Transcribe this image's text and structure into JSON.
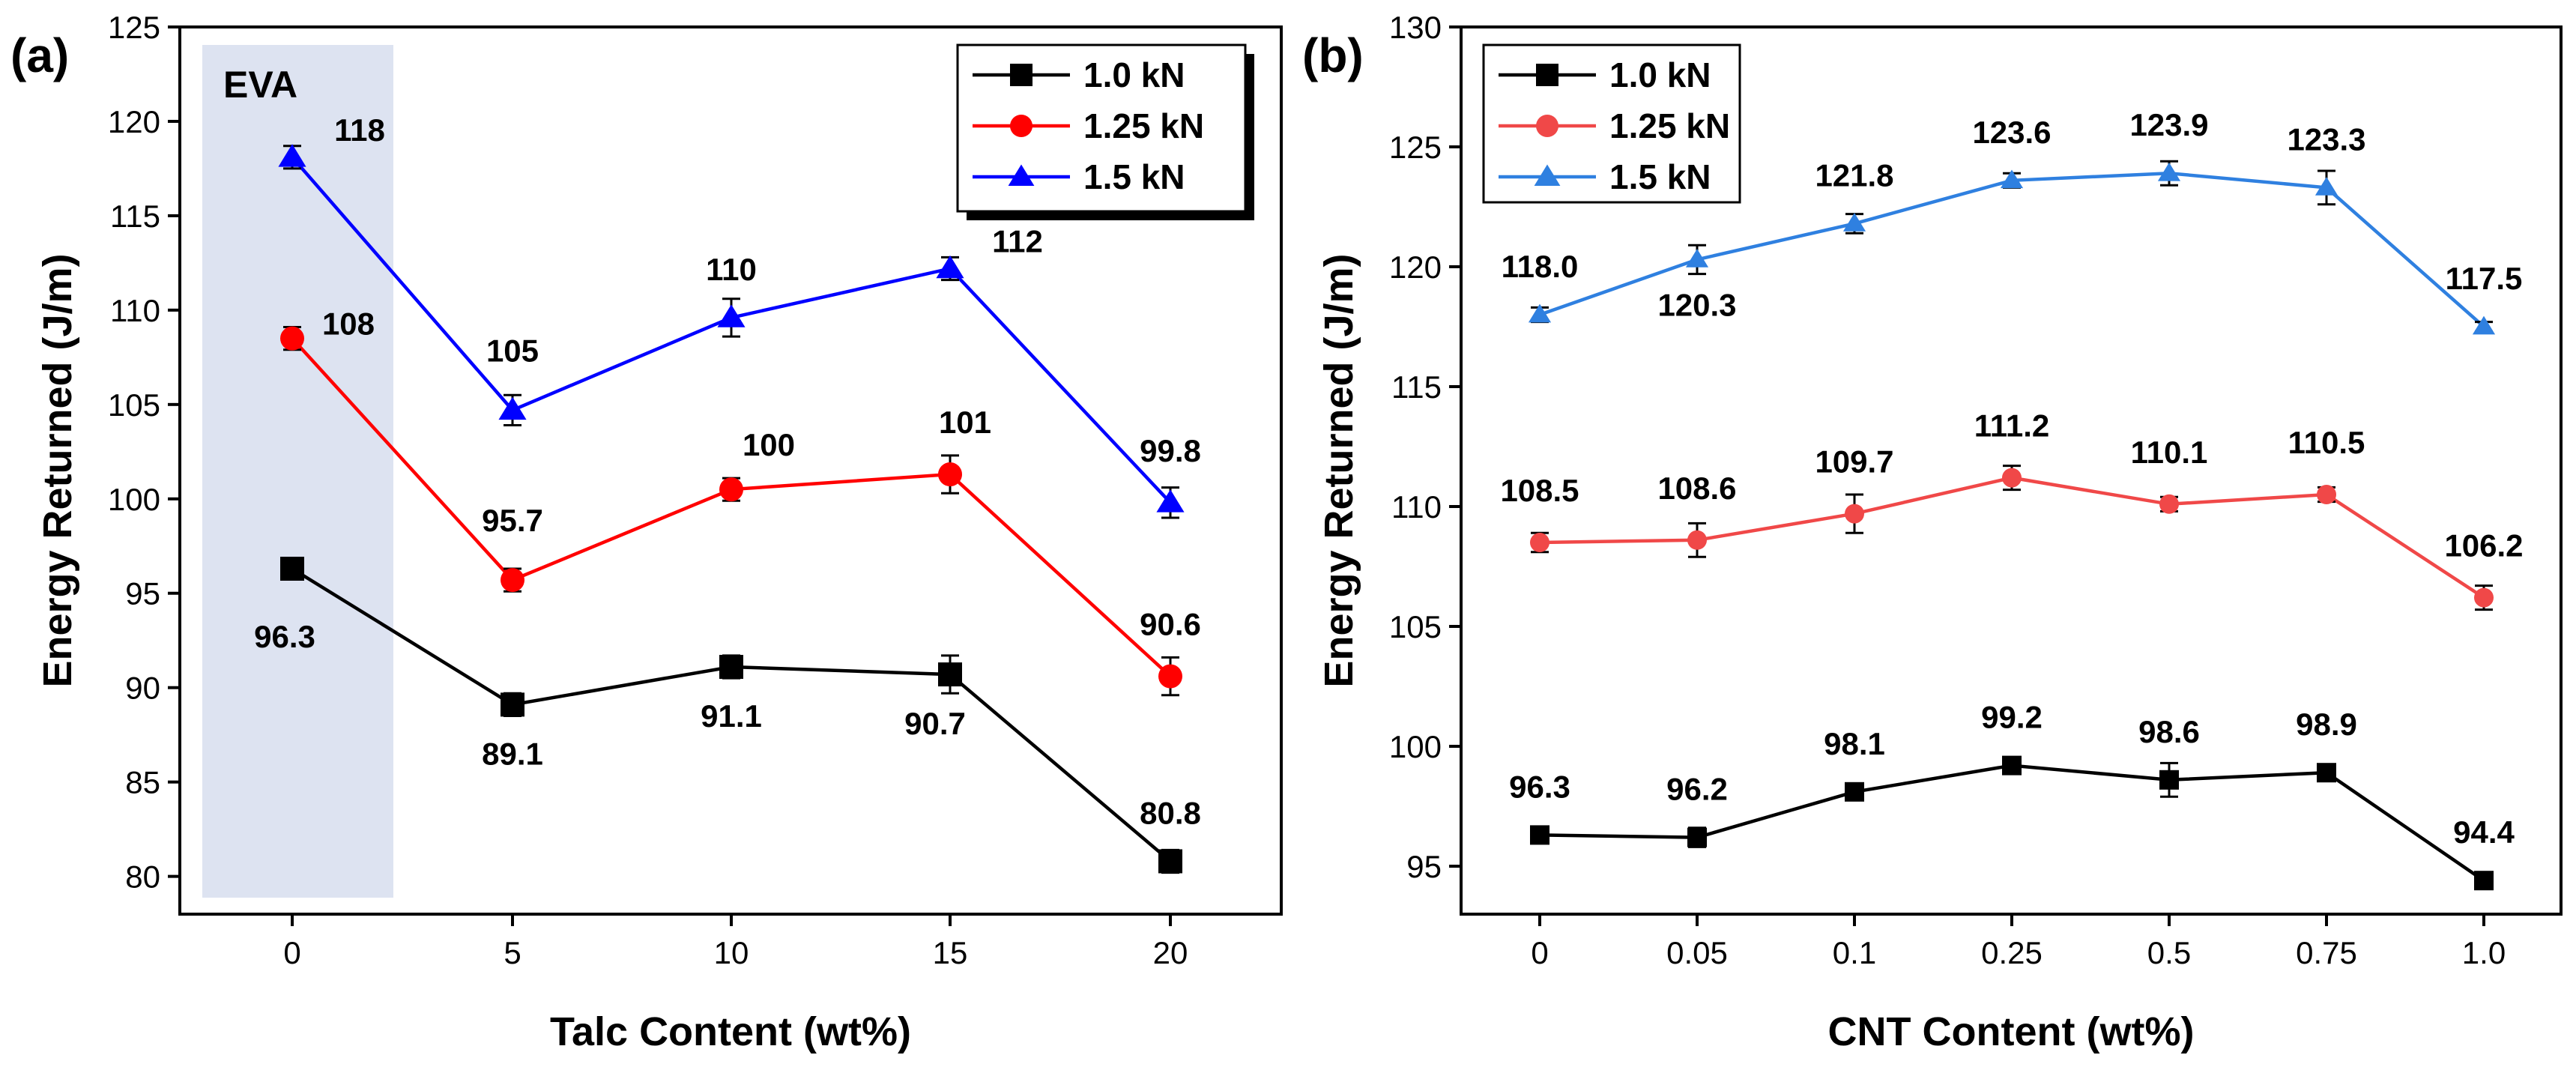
{
  "chart_data": [
    {
      "type": "line",
      "panel_label": "(a)",
      "xlabel": "Talc Content (wt%)",
      "ylabel": "Energy Returned (J/m)",
      "categories": [
        "0",
        "5",
        "10",
        "15",
        "20"
      ],
      "ylim": [
        78,
        125
      ],
      "yticks": [
        80,
        85,
        90,
        95,
        100,
        105,
        110,
        115,
        120,
        125
      ],
      "shaded_region": {
        "label": "EVA",
        "category": "0"
      },
      "legend_position": "top-right",
      "series": [
        {
          "name": "1.0 kN",
          "color": "#000000",
          "marker": "square",
          "values": [
            96.3,
            89.1,
            91.1,
            90.7,
            80.8
          ],
          "errors": [
            0.4,
            0.6,
            0.6,
            1.0,
            0.6
          ],
          "labels": [
            "96.3",
            "89.1",
            "91.1",
            "90.7",
            "80.8"
          ]
        },
        {
          "name": "1.25 kN",
          "color": "#ff0000",
          "marker": "circle",
          "values": [
            108.5,
            95.7,
            100.5,
            101.3,
            90.6
          ],
          "errors": [
            0.6,
            0.6,
            0.6,
            1.0,
            1.0
          ],
          "labels": [
            "108",
            "95.7",
            "100",
            "101",
            "90.6"
          ]
        },
        {
          "name": "1.5 kN",
          "color": "#0000ff",
          "marker": "triangle",
          "values": [
            118.1,
            104.7,
            109.6,
            112.2,
            99.8
          ],
          "errors": [
            0.6,
            0.8,
            1.0,
            0.6,
            0.8
          ],
          "labels": [
            "118",
            "105",
            "110",
            "112",
            "99.8"
          ]
        }
      ]
    },
    {
      "type": "line",
      "panel_label": "(b)",
      "xlabel": "CNT Content (wt%)",
      "ylabel": "Energy Returned (J/m)",
      "categories": [
        "0",
        "0.05",
        "0.1",
        "0.25",
        "0.5",
        "0.75",
        "1.0"
      ],
      "ylim": [
        93,
        130
      ],
      "yticks": [
        95,
        100,
        105,
        110,
        115,
        120,
        125,
        130
      ],
      "legend_position": "top-left",
      "series": [
        {
          "name": "1.0 kN",
          "color": "#000000",
          "marker": "square",
          "values": [
            96.3,
            96.2,
            98.1,
            99.2,
            98.6,
            98.9,
            94.4
          ],
          "errors": [
            0.2,
            0.4,
            0.3,
            0.3,
            0.7,
            0.2,
            0.3
          ],
          "labels": [
            "96.3",
            "96.2",
            "98.1",
            "99.2",
            "98.6",
            "98.9",
            "94.4"
          ]
        },
        {
          "name": "1.25 kN",
          "color": "#f04848",
          "marker": "circle",
          "values": [
            108.5,
            108.6,
            109.7,
            111.2,
            110.1,
            110.5,
            106.2
          ],
          "errors": [
            0.4,
            0.7,
            0.8,
            0.5,
            0.3,
            0.3,
            0.5
          ],
          "labels": [
            "108.5",
            "108.6",
            "109.7",
            "111.2",
            "110.1",
            "110.5",
            "106.2"
          ]
        },
        {
          "name": "1.5 kN",
          "color": "#2f80e0",
          "marker": "triangle",
          "values": [
            118.0,
            120.3,
            121.8,
            123.6,
            123.9,
            123.3,
            117.5
          ],
          "errors": [
            0.3,
            0.6,
            0.4,
            0.3,
            0.5,
            0.7,
            0.2
          ],
          "labels": [
            "118.0",
            "120.3",
            "121.8",
            "123.6",
            "123.9",
            "123.3",
            "117.5"
          ]
        }
      ]
    }
  ]
}
